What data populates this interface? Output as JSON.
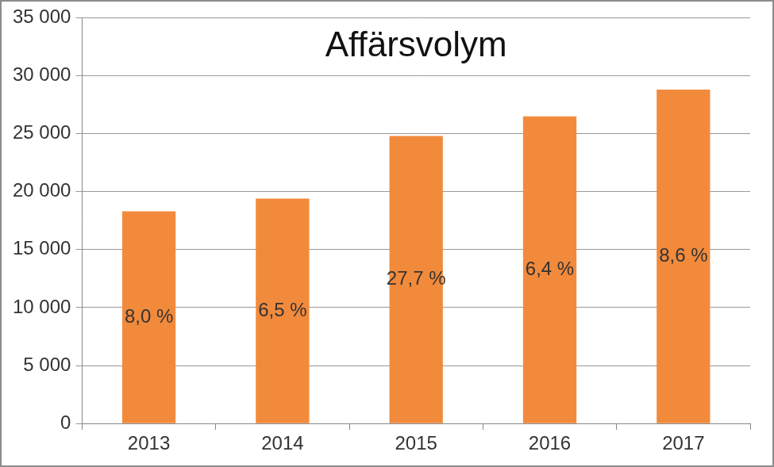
{
  "chart_data": {
    "type": "bar",
    "title": "Affärsvolym",
    "categories": [
      "2013",
      "2014",
      "2015",
      "2016",
      "2017"
    ],
    "values": [
      18300,
      19400,
      24800,
      26500,
      28800
    ],
    "color": "#f28a3c",
    "ylim": [
      0,
      35000
    ],
    "yticks": [
      0,
      {
        "value": 5000,
        "label": "5 000"
      },
      {
        "value": 10000,
        "label": "10 000"
      },
      {
        "value": 15000,
        "label": "15 000"
      },
      {
        "value": 20000,
        "label": "20 000"
      },
      {
        "value": 25000,
        "label": "25 000"
      },
      {
        "value": 30000,
        "label": "30 000"
      },
      {
        "value": 35000,
        "label": "35 000"
      }
    ],
    "grid": true,
    "annotations": [
      {
        "category": "2013",
        "value": 8.0,
        "label": "8,0 %"
      },
      {
        "category": "2014",
        "value": 6.5,
        "label": "6,5 %"
      },
      {
        "category": "2015",
        "value": 27.7,
        "label": "27,7 %"
      },
      {
        "category": "2016",
        "value": 6.4,
        "label": "6,4 %"
      },
      {
        "category": "2017",
        "value": 8.6,
        "label": "8,6 %"
      }
    ]
  }
}
